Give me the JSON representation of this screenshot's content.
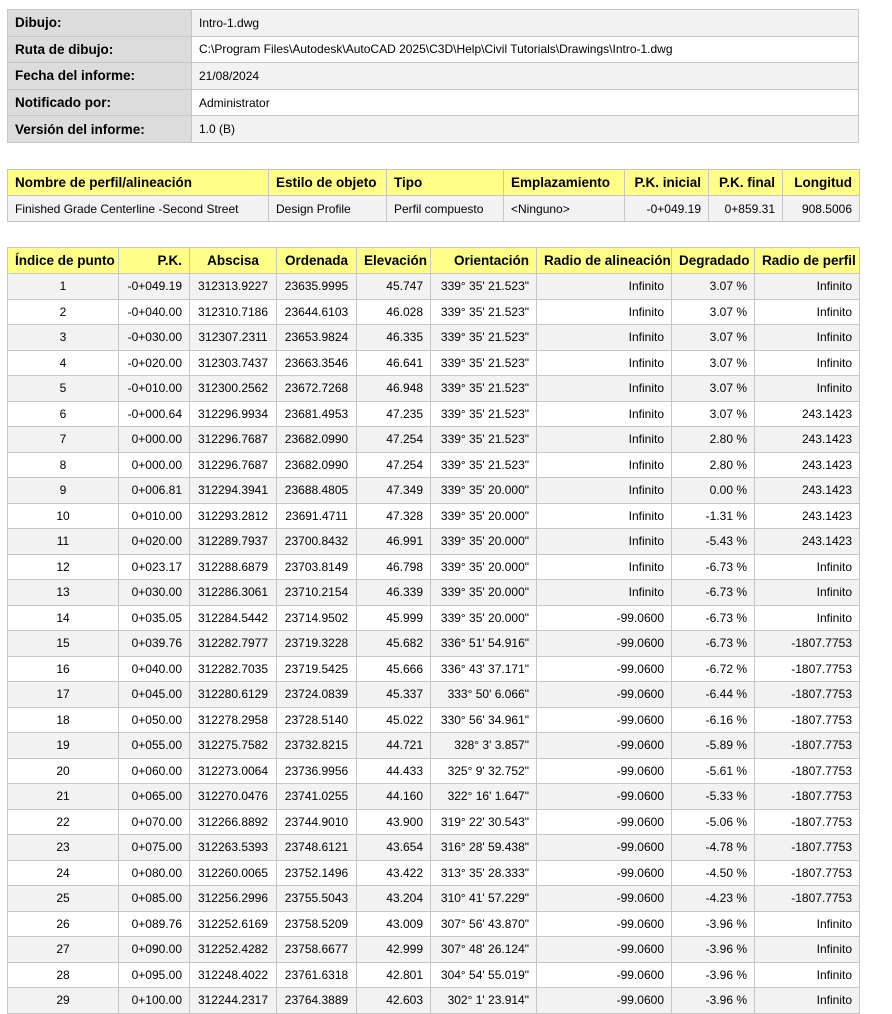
{
  "info": [
    {
      "label": "Dibujo:",
      "value": "Intro-1.dwg"
    },
    {
      "label": "Ruta de dibujo:",
      "value": "C:\\Program Files\\Autodesk\\AutoCAD 2025\\C3D\\Help\\Civil Tutorials\\Drawings\\Intro-1.dwg"
    },
    {
      "label": "Fecha del informe:",
      "value": "21/08/2024"
    },
    {
      "label": "Notificado por:",
      "value": "Administrator"
    },
    {
      "label": "Versión del informe:",
      "value": "1.0 (B)"
    }
  ],
  "profile": {
    "headers": [
      "Nombre de perfil/alineación",
      "Estilo de objeto",
      "Tipo",
      "Emplazamiento",
      "P.K. inicial",
      "P.K. final",
      "Longitud"
    ],
    "row": [
      "Finished Grade Centerline -Second Street",
      "Design Profile",
      "Perfil compuesto",
      "<Ninguno>",
      "-0+049.19",
      "0+859.31",
      "908.5006"
    ]
  },
  "points": {
    "headers": [
      "Índice de punto",
      "P.K.",
      "Abscisa",
      "Ordenada",
      "Elevación",
      "Orientación",
      "Radio de alineación",
      "Degradado",
      "Radio de perfil"
    ],
    "rows": [
      [
        "1",
        "-0+049.19",
        "312313.9227",
        "23635.9995",
        "45.747",
        "339° 35' 21.523\"",
        "Infinito",
        "3.07 %",
        "Infinito"
      ],
      [
        "2",
        "-0+040.00",
        "312310.7186",
        "23644.6103",
        "46.028",
        "339° 35' 21.523\"",
        "Infinito",
        "3.07 %",
        "Infinito"
      ],
      [
        "3",
        "-0+030.00",
        "312307.2311",
        "23653.9824",
        "46.335",
        "339° 35' 21.523\"",
        "Infinito",
        "3.07 %",
        "Infinito"
      ],
      [
        "4",
        "-0+020.00",
        "312303.7437",
        "23663.3546",
        "46.641",
        "339° 35' 21.523\"",
        "Infinito",
        "3.07 %",
        "Infinito"
      ],
      [
        "5",
        "-0+010.00",
        "312300.2562",
        "23672.7268",
        "46.948",
        "339° 35' 21.523\"",
        "Infinito",
        "3.07 %",
        "Infinito"
      ],
      [
        "6",
        "-0+000.64",
        "312296.9934",
        "23681.4953",
        "47.235",
        "339° 35' 21.523\"",
        "Infinito",
        "3.07 %",
        "243.1423"
      ],
      [
        "7",
        "0+000.00",
        "312296.7687",
        "23682.0990",
        "47.254",
        "339° 35' 21.523\"",
        "Infinito",
        "2.80 %",
        "243.1423"
      ],
      [
        "8",
        "0+000.00",
        "312296.7687",
        "23682.0990",
        "47.254",
        "339° 35' 21.523\"",
        "Infinito",
        "2.80 %",
        "243.1423"
      ],
      [
        "9",
        "0+006.81",
        "312294.3941",
        "23688.4805",
        "47.349",
        "339° 35' 20.000\"",
        "Infinito",
        "0.00 %",
        "243.1423"
      ],
      [
        "10",
        "0+010.00",
        "312293.2812",
        "23691.4711",
        "47.328",
        "339° 35' 20.000\"",
        "Infinito",
        "-1.31 %",
        "243.1423"
      ],
      [
        "11",
        "0+020.00",
        "312289.7937",
        "23700.8432",
        "46.991",
        "339° 35' 20.000\"",
        "Infinito",
        "-5.43 %",
        "243.1423"
      ],
      [
        "12",
        "0+023.17",
        "312288.6879",
        "23703.8149",
        "46.798",
        "339° 35' 20.000\"",
        "Infinito",
        "-6.73 %",
        "Infinito"
      ],
      [
        "13",
        "0+030.00",
        "312286.3061",
        "23710.2154",
        "46.339",
        "339° 35' 20.000\"",
        "Infinito",
        "-6.73 %",
        "Infinito"
      ],
      [
        "14",
        "0+035.05",
        "312284.5442",
        "23714.9502",
        "45.999",
        "339° 35' 20.000\"",
        "-99.0600",
        "-6.73 %",
        "Infinito"
      ],
      [
        "15",
        "0+039.76",
        "312282.7977",
        "23719.3228",
        "45.682",
        "336° 51' 54.916\"",
        "-99.0600",
        "-6.73 %",
        "-1807.7753"
      ],
      [
        "16",
        "0+040.00",
        "312282.7035",
        "23719.5425",
        "45.666",
        "336° 43' 37.171\"",
        "-99.0600",
        "-6.72 %",
        "-1807.7753"
      ],
      [
        "17",
        "0+045.00",
        "312280.6129",
        "23724.0839",
        "45.337",
        "333° 50' 6.066\"",
        "-99.0600",
        "-6.44 %",
        "-1807.7753"
      ],
      [
        "18",
        "0+050.00",
        "312278.2958",
        "23728.5140",
        "45.022",
        "330° 56' 34.961\"",
        "-99.0600",
        "-6.16 %",
        "-1807.7753"
      ],
      [
        "19",
        "0+055.00",
        "312275.7582",
        "23732.8215",
        "44.721",
        "328° 3' 3.857\"",
        "-99.0600",
        "-5.89 %",
        "-1807.7753"
      ],
      [
        "20",
        "0+060.00",
        "312273.0064",
        "23736.9956",
        "44.433",
        "325° 9' 32.752\"",
        "-99.0600",
        "-5.61 %",
        "-1807.7753"
      ],
      [
        "21",
        "0+065.00",
        "312270.0476",
        "23741.0255",
        "44.160",
        "322° 16' 1.647\"",
        "-99.0600",
        "-5.33 %",
        "-1807.7753"
      ],
      [
        "22",
        "0+070.00",
        "312266.8892",
        "23744.9010",
        "43.900",
        "319° 22' 30.543\"",
        "-99.0600",
        "-5.06 %",
        "-1807.7753"
      ],
      [
        "23",
        "0+075.00",
        "312263.5393",
        "23748.6121",
        "43.654",
        "316° 28' 59.438\"",
        "-99.0600",
        "-4.78 %",
        "-1807.7753"
      ],
      [
        "24",
        "0+080.00",
        "312260.0065",
        "23752.1496",
        "43.422",
        "313° 35' 28.333\"",
        "-99.0600",
        "-4.50 %",
        "-1807.7753"
      ],
      [
        "25",
        "0+085.00",
        "312256.2996",
        "23755.5043",
        "43.204",
        "310° 41' 57.229\"",
        "-99.0600",
        "-4.23 %",
        "-1807.7753"
      ],
      [
        "26",
        "0+089.76",
        "312252.6169",
        "23758.5209",
        "43.009",
        "307° 56' 43.870\"",
        "-99.0600",
        "-3.96 %",
        "Infinito"
      ],
      [
        "27",
        "0+090.00",
        "312252.4282",
        "23758.6677",
        "42.999",
        "307° 48' 26.124\"",
        "-99.0600",
        "-3.96 %",
        "Infinito"
      ],
      [
        "28",
        "0+095.00",
        "312248.4022",
        "23761.6318",
        "42.801",
        "304° 54' 55.019\"",
        "-99.0600",
        "-3.96 %",
        "Infinito"
      ],
      [
        "29",
        "0+100.00",
        "312244.2317",
        "23764.3889",
        "42.603",
        "302° 1' 23.914\"",
        "-99.0600",
        "-3.96 %",
        "Infinito"
      ]
    ]
  }
}
